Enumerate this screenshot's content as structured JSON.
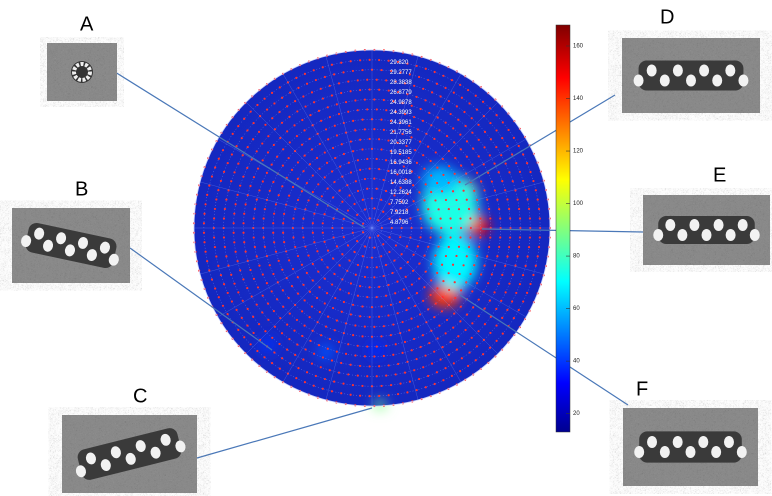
{
  "figure": {
    "panels": [
      {
        "label": "A"
      },
      {
        "label": "B"
      },
      {
        "label": "C"
      },
      {
        "label": "D"
      },
      {
        "label": "E"
      },
      {
        "label": "F"
      }
    ],
    "polar_plot": {
      "ring_labels": [
        "29.820",
        "29.2777",
        "28.3838",
        "26.8779",
        "24.9878",
        "24.3993",
        "24.3961",
        "21.7756",
        "20.3377",
        "19.5185",
        "16.9436",
        "16.0018",
        "14.6388",
        "12.2624",
        "7.7592",
        "7.9218",
        "4.8796"
      ]
    },
    "hotspots": [
      {
        "value": 165
      },
      {
        "value": 150
      },
      {
        "value": 140
      },
      {
        "value": 75
      },
      {
        "value": 70
      },
      {
        "value": 60
      },
      {
        "value": 45
      },
      {
        "value": 40
      },
      {
        "value": 38
      },
      {
        "value": 90
      }
    ],
    "colorbar": {
      "lim": [
        13,
        168
      ],
      "ticks": [
        20,
        40,
        60,
        80,
        100,
        120,
        140,
        160
      ]
    }
  }
}
